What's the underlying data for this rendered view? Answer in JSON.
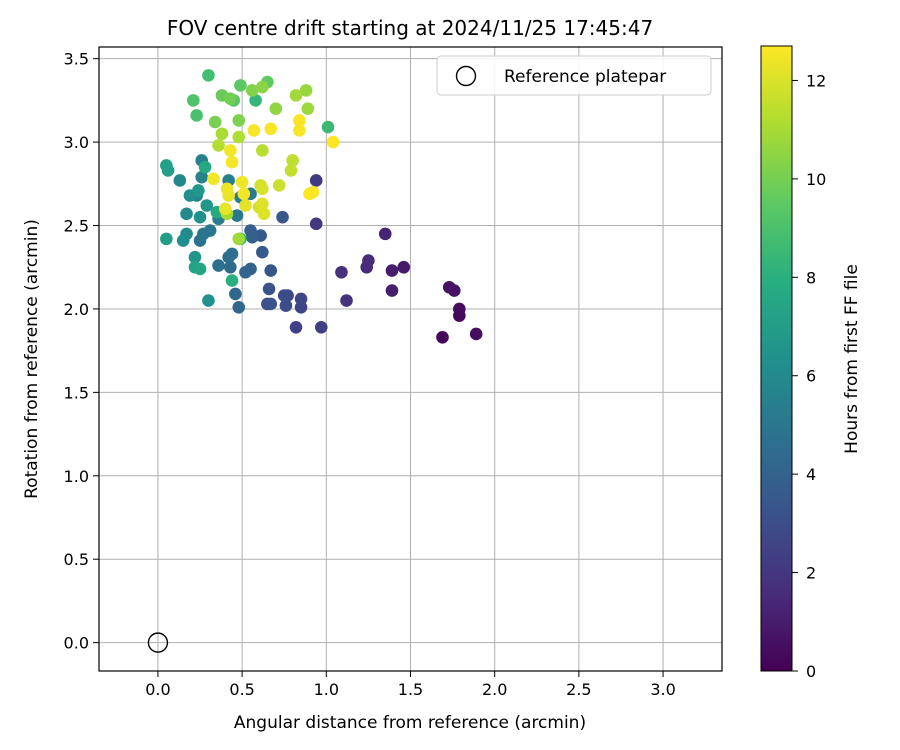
{
  "chart_data": {
    "type": "scatter",
    "title": "FOV centre drift starting at 2024/11/25 17:45:47",
    "xlabel": "Angular distance from reference (arcmin)",
    "ylabel": "Rotation from reference (arcmin)",
    "colorbar_label": "Hours from first FF file",
    "xlim": [
      -0.35,
      3.35
    ],
    "ylim": [
      -0.17,
      3.57
    ],
    "xticks": [
      "0.0",
      "0.5",
      "1.0",
      "1.5",
      "2.0",
      "2.5",
      "3.0"
    ],
    "yticks": [
      "0.0",
      "0.5",
      "1.0",
      "1.5",
      "2.0",
      "2.5",
      "3.0",
      "3.5"
    ],
    "colorbar_ticks": [
      "0",
      "2",
      "4",
      "6",
      "8",
      "10",
      "12"
    ],
    "colorbar_range": [
      0,
      12.7
    ],
    "grid": true,
    "legend_position": "top-right",
    "reference": {
      "label": "Reference platepar",
      "x": 0.0,
      "y": 0.0
    },
    "points": [
      [
        1.69,
        1.83,
        0.2
      ],
      [
        1.79,
        1.96,
        0.3
      ],
      [
        1.79,
        2.0,
        0.4
      ],
      [
        1.89,
        1.85,
        0.5
      ],
      [
        1.73,
        2.13,
        0.6
      ],
      [
        1.76,
        2.11,
        0.7
      ],
      [
        1.46,
        2.25,
        0.9
      ],
      [
        1.39,
        2.23,
        1.0
      ],
      [
        1.39,
        2.11,
        1.1
      ],
      [
        1.35,
        2.45,
        1.3
      ],
      [
        1.24,
        2.25,
        1.5
      ],
      [
        1.25,
        2.29,
        1.6
      ],
      [
        1.09,
        2.22,
        1.8
      ],
      [
        1.12,
        2.05,
        1.9
      ],
      [
        0.94,
        2.51,
        2.1
      ],
      [
        0.94,
        2.77,
        2.2
      ],
      [
        0.97,
        1.89,
        2.4
      ],
      [
        0.82,
        1.89,
        2.5
      ],
      [
        0.85,
        2.01,
        2.6
      ],
      [
        0.85,
        2.06,
        2.7
      ],
      [
        0.77,
        2.08,
        2.8
      ],
      [
        0.75,
        2.08,
        2.9
      ],
      [
        0.76,
        2.02,
        3.0
      ],
      [
        0.65,
        2.03,
        3.1
      ],
      [
        0.67,
        2.03,
        3.2
      ],
      [
        0.66,
        2.12,
        3.3
      ],
      [
        0.67,
        2.23,
        3.4
      ],
      [
        0.74,
        2.55,
        3.5
      ],
      [
        0.62,
        2.34,
        3.6
      ],
      [
        0.61,
        2.44,
        3.7
      ],
      [
        0.55,
        2.47,
        3.8
      ],
      [
        0.56,
        2.43,
        3.9
      ],
      [
        0.55,
        2.24,
        4.0
      ],
      [
        0.52,
        2.22,
        4.1
      ],
      [
        0.48,
        2.01,
        4.2
      ],
      [
        0.46,
        2.09,
        4.3
      ],
      [
        0.43,
        2.25,
        4.4
      ],
      [
        0.42,
        2.31,
        4.5
      ],
      [
        0.44,
        2.33,
        4.6
      ],
      [
        0.36,
        2.26,
        4.7
      ],
      [
        0.25,
        2.41,
        4.8
      ],
      [
        0.27,
        2.45,
        4.9
      ],
      [
        0.31,
        2.47,
        5.0
      ],
      [
        0.47,
        2.56,
        5.1
      ],
      [
        0.55,
        2.69,
        5.2
      ],
      [
        0.49,
        2.67,
        5.3
      ],
      [
        0.36,
        2.54,
        5.4
      ],
      [
        0.42,
        2.77,
        5.5
      ],
      [
        0.26,
        2.89,
        5.6
      ],
      [
        0.26,
        2.79,
        5.7
      ],
      [
        0.23,
        2.68,
        5.8
      ],
      [
        0.13,
        2.77,
        5.9
      ],
      [
        0.17,
        2.57,
        6.0
      ],
      [
        0.17,
        2.45,
        6.1
      ],
      [
        0.15,
        2.41,
        6.2
      ],
      [
        0.19,
        2.68,
        6.3
      ],
      [
        0.25,
        2.55,
        6.4
      ],
      [
        0.3,
        2.05,
        6.5
      ],
      [
        0.22,
        2.31,
        6.6
      ],
      [
        0.29,
        2.62,
        6.7
      ],
      [
        0.24,
        2.71,
        6.8
      ],
      [
        0.05,
        2.42,
        7.0
      ],
      [
        0.06,
        2.83,
        7.1
      ],
      [
        0.05,
        2.86,
        7.2
      ],
      [
        0.22,
        2.25,
        7.4
      ],
      [
        0.25,
        2.24,
        7.5
      ],
      [
        0.28,
        2.85,
        7.7
      ],
      [
        0.35,
        2.58,
        7.8
      ],
      [
        0.44,
        2.17,
        8.0
      ],
      [
        0.49,
        2.42,
        8.2
      ],
      [
        0.58,
        3.25,
        8.4
      ],
      [
        1.01,
        3.09,
        8.6
      ],
      [
        0.3,
        3.4,
        8.8
      ],
      [
        0.23,
        3.16,
        9.0
      ],
      [
        0.21,
        3.25,
        9.2
      ],
      [
        0.45,
        3.25,
        9.4
      ],
      [
        0.49,
        3.34,
        9.5
      ],
      [
        0.65,
        3.36,
        9.6
      ],
      [
        0.38,
        3.28,
        9.8
      ],
      [
        0.43,
        3.26,
        10.0
      ],
      [
        0.34,
        3.12,
        10.1
      ],
      [
        0.48,
        3.13,
        10.2
      ],
      [
        0.56,
        3.31,
        10.3
      ],
      [
        0.62,
        3.33,
        10.5
      ],
      [
        0.7,
        3.2,
        10.6
      ],
      [
        0.88,
        3.31,
        10.7
      ],
      [
        0.89,
        3.2,
        10.8
      ],
      [
        0.82,
        3.28,
        10.9
      ],
      [
        0.48,
        2.42,
        10.9
      ],
      [
        0.41,
        2.57,
        11.0
      ],
      [
        0.38,
        3.05,
        11.1
      ],
      [
        0.48,
        3.03,
        11.2
      ],
      [
        0.36,
        2.98,
        11.3
      ],
      [
        0.62,
        2.95,
        11.4
      ],
      [
        0.8,
        2.89,
        11.5
      ],
      [
        0.79,
        2.83,
        11.6
      ],
      [
        0.72,
        2.74,
        11.7
      ],
      [
        0.61,
        2.74,
        11.8
      ],
      [
        0.6,
        2.61,
        11.9
      ],
      [
        0.62,
        2.72,
        12.0
      ],
      [
        0.63,
        2.57,
        12.1
      ],
      [
        0.62,
        2.63,
        12.1
      ],
      [
        0.52,
        2.62,
        12.2
      ],
      [
        0.4,
        2.6,
        12.3
      ],
      [
        0.42,
        2.68,
        12.3
      ],
      [
        0.41,
        2.72,
        12.4
      ],
      [
        0.5,
        2.76,
        12.4
      ],
      [
        0.51,
        2.69,
        12.5
      ],
      [
        0.33,
        2.78,
        12.5
      ],
      [
        0.44,
        2.88,
        12.5
      ],
      [
        0.43,
        2.95,
        12.5
      ],
      [
        0.57,
        3.07,
        12.6
      ],
      [
        0.67,
        3.08,
        12.6
      ],
      [
        0.84,
        3.07,
        12.6
      ],
      [
        0.84,
        3.13,
        12.6
      ],
      [
        0.9,
        2.69,
        12.7
      ],
      [
        0.92,
        2.7,
        12.7
      ],
      [
        1.04,
        3.0,
        12.7
      ]
    ]
  }
}
